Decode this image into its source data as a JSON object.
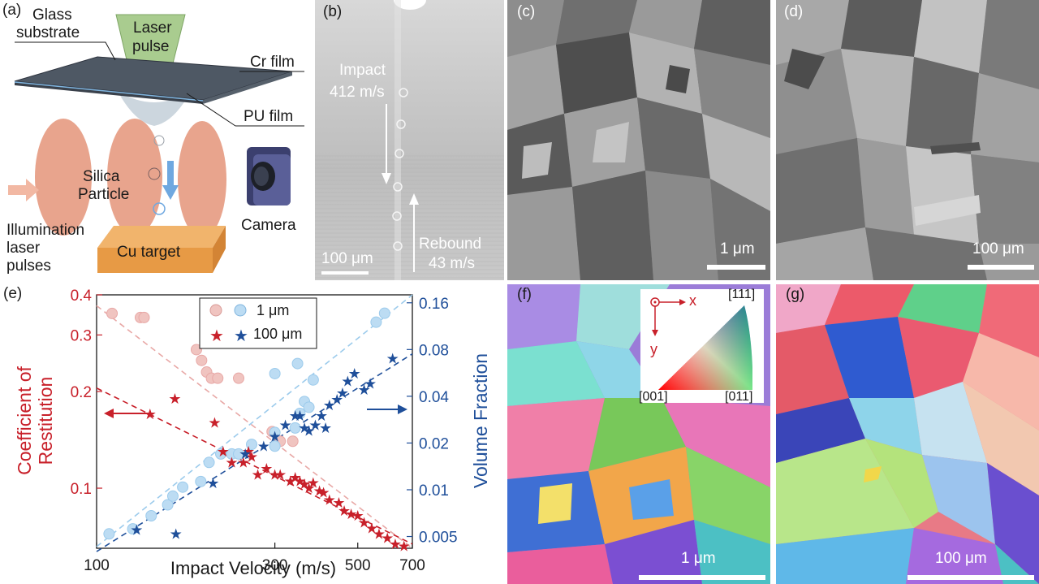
{
  "panels": {
    "a": {
      "label": "(a)",
      "glass_substrate": [
        "Glass",
        "substrate"
      ],
      "laser_pulse": [
        "Laser",
        "pulse"
      ],
      "cr_film": "Cr film",
      "pu_film": "PU film",
      "silica_particle": [
        "Silica",
        "Particle"
      ],
      "illumination": [
        "Illumination",
        "laser",
        "pulses"
      ],
      "camera": "Camera",
      "cu_target": "Cu target"
    },
    "b": {
      "label": "(b)",
      "impact": [
        "Impact",
        "412 m/s"
      ],
      "rebound": [
        "Rebound",
        "43 m/s"
      ],
      "scale": "100 μm"
    },
    "c": {
      "label": "(c)",
      "scale": "1 μm"
    },
    "d": {
      "label": "(d)",
      "scale": "100 μm"
    },
    "f": {
      "label": "(f)",
      "scale": "1 μm",
      "key": {
        "x": "x",
        "y": "y",
        "top": "[111]",
        "left": "[001]",
        "right": "[011]"
      }
    },
    "g": {
      "label": "(g)",
      "scale": "100 μm"
    }
  },
  "chart_data": {
    "type": "scatter",
    "label": "(e)",
    "xlabel": "Impact Velocity (m/s)",
    "ylabel_left": "Coefficient of Restitution",
    "ylabel_right": "Volume Fraction",
    "x_scale": "log",
    "y_scale": "log",
    "xlim": [
      100,
      700
    ],
    "ylim_left": [
      0.065,
      0.4
    ],
    "ylim_right": [
      0.0042,
      0.18
    ],
    "x_ticks": [
      100,
      300,
      500,
      700
    ],
    "x_tick_labels": [
      "100",
      "300",
      "500",
      "700"
    ],
    "y_left_ticks": [
      0.1,
      0.2,
      0.3,
      0.4
    ],
    "y_left_tick_labels": [
      "0.1",
      "0.2",
      "0.3",
      "0.4"
    ],
    "y_right_ticks": [
      0.005,
      0.01,
      0.02,
      0.04,
      0.08,
      0.16
    ],
    "y_right_tick_labels": [
      "0.005",
      "0.01",
      "0.02",
      "0.04",
      "0.08",
      "0.16"
    ],
    "legend": {
      "position": "top-center",
      "entries": [
        "1 μm",
        "100 μm"
      ]
    },
    "colors": {
      "red": "#c8202a",
      "blue": "#1f4f9a",
      "light_red": "#f0c4c0",
      "light_blue": "#bcdcf3"
    },
    "series": [
      {
        "name": "1 μm",
        "axis": "left",
        "marker": "circle",
        "color": "#e8a8a6",
        "points": [
          [
            110,
            0.35
          ],
          [
            131,
            0.34
          ],
          [
            134,
            0.34
          ],
          [
            185,
            0.27
          ],
          [
            191,
            0.25
          ],
          [
            197,
            0.23
          ],
          [
            203,
            0.22
          ],
          [
            211,
            0.22
          ],
          [
            240,
            0.22
          ],
          [
            295,
            0.15
          ],
          [
            310,
            0.14
          ],
          [
            335,
            0.14
          ]
        ]
      },
      {
        "name": "1 μm",
        "axis": "right",
        "marker": "circle",
        "color": "#9ccbec",
        "points": [
          [
            108,
            0.0052
          ],
          [
            125,
            0.0056
          ],
          [
            140,
            0.0068
          ],
          [
            155,
            0.008
          ],
          [
            160,
            0.0091
          ],
          [
            170,
            0.0104
          ],
          [
            190,
            0.0113
          ],
          [
            200,
            0.015
          ],
          [
            215,
            0.017
          ],
          [
            230,
            0.017
          ],
          [
            240,
            0.017
          ],
          [
            260,
            0.0196
          ],
          [
            300,
            0.0191
          ],
          [
            300,
            0.0234
          ],
          [
            340,
            0.025
          ],
          [
            350,
            0.031
          ],
          [
            360,
            0.037
          ],
          [
            370,
            0.034
          ],
          [
            300,
            0.056
          ],
          [
            345,
            0.065
          ],
          [
            380,
            0.051
          ],
          [
            560,
            0.12
          ],
          [
            590,
            0.137
          ]
        ]
      },
      {
        "name": "100 μm",
        "axis": "left",
        "marker": "star",
        "color": "#c8202a",
        "points": [
          [
            139,
            0.17
          ],
          [
            162,
            0.19
          ],
          [
            207,
            0.16
          ],
          [
            218,
            0.13
          ],
          [
            230,
            0.12
          ],
          [
            247,
            0.12
          ],
          [
            255,
            0.13
          ],
          [
            260,
            0.125
          ],
          [
            270,
            0.11
          ],
          [
            285,
            0.115
          ],
          [
            300,
            0.11
          ],
          [
            310,
            0.11
          ],
          [
            330,
            0.105
          ],
          [
            340,
            0.108
          ],
          [
            350,
            0.105
          ],
          [
            360,
            0.103
          ],
          [
            370,
            0.1
          ],
          [
            380,
            0.104
          ],
          [
            395,
            0.098
          ],
          [
            405,
            0.097
          ],
          [
            420,
            0.092
          ],
          [
            445,
            0.09
          ],
          [
            460,
            0.085
          ],
          [
            480,
            0.083
          ],
          [
            500,
            0.082
          ],
          [
            520,
            0.078
          ],
          [
            545,
            0.075
          ],
          [
            570,
            0.072
          ],
          [
            600,
            0.07
          ],
          [
            630,
            0.067
          ],
          [
            665,
            0.066
          ]
        ]
      },
      {
        "name": "100 μm",
        "axis": "right",
        "marker": "star",
        "color": "#1f4f9a",
        "points": [
          [
            128,
            0.0055
          ],
          [
            163,
            0.0052
          ],
          [
            205,
            0.011
          ],
          [
            250,
            0.017
          ],
          [
            280,
            0.019
          ],
          [
            300,
            0.022
          ],
          [
            320,
            0.026
          ],
          [
            340,
            0.03
          ],
          [
            350,
            0.03
          ],
          [
            360,
            0.025
          ],
          [
            370,
            0.024
          ],
          [
            385,
            0.026
          ],
          [
            400,
            0.03
          ],
          [
            410,
            0.025
          ],
          [
            420,
            0.035
          ],
          [
            440,
            0.038
          ],
          [
            455,
            0.042
          ],
          [
            470,
            0.05
          ],
          [
            490,
            0.056
          ],
          [
            520,
            0.044
          ],
          [
            540,
            0.048
          ],
          [
            620,
            0.07
          ]
        ]
      }
    ],
    "fit_lines": [
      {
        "axis": "left",
        "color": "#e8a8a6",
        "from": [
          100,
          0.37
        ],
        "to": [
          700,
          0.065
        ]
      },
      {
        "axis": "left",
        "color": "#c8202a",
        "from": [
          100,
          0.205
        ],
        "to": [
          700,
          0.067
        ]
      },
      {
        "axis": "right",
        "color": "#9ccbec",
        "from": [
          100,
          0.0043
        ],
        "to": [
          700,
          0.18
        ]
      },
      {
        "axis": "right",
        "color": "#1f4f9a",
        "from": [
          100,
          0.004
        ],
        "to": [
          700,
          0.075
        ]
      }
    ]
  }
}
